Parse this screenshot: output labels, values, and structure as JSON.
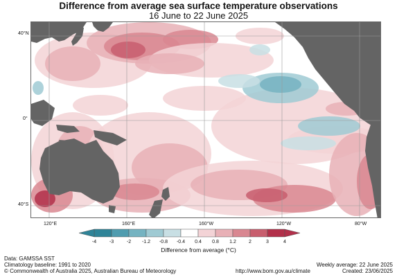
{
  "title": "Difference from average sea surface temperature observations",
  "subtitle": "16 June to 22 June 2025",
  "lat_labels": [
    "40°N",
    "0°",
    "40°S"
  ],
  "lon_labels": [
    "120°E",
    "160°E",
    "160°W",
    "120°W",
    "80°W"
  ],
  "colors": {
    "land": "#646464",
    "neutral": "#ffffff",
    "warm": [
      "#f3d3d6",
      "#e8b0b6",
      "#d98791",
      "#c85e6e",
      "#b2304a"
    ],
    "cool": [
      "#c8dfe4",
      "#9fcad3",
      "#75b3c1",
      "#4f9caf",
      "#2f8498"
    ]
  },
  "colorbar": {
    "ticks": [
      "-4",
      "-3",
      "-2",
      "-1.2",
      "-0.8",
      "-0.4",
      "0.4",
      "0.8",
      "1.2",
      "2",
      "3",
      "4"
    ],
    "colors": [
      "#2f8498",
      "#4f9caf",
      "#75b3c1",
      "#9fcad3",
      "#c8dfe4",
      "#ffffff",
      "#f3d3d6",
      "#e8b0b6",
      "#d98791",
      "#c85e6e",
      "#b2304a"
    ],
    "label": "Difference from average (°C)"
  },
  "footer": {
    "data": "Data: GAMSSA SST",
    "baseline": "Climatology baseline: 1991 to 2020",
    "copyright": "© Commonwealth of Australia 2025, Australian Bureau of Meteorology",
    "url": "http://www.bom.gov.au/climate",
    "weekly": "Weekly average: 22 June 2025",
    "created": "Created: 23/06/2025"
  }
}
